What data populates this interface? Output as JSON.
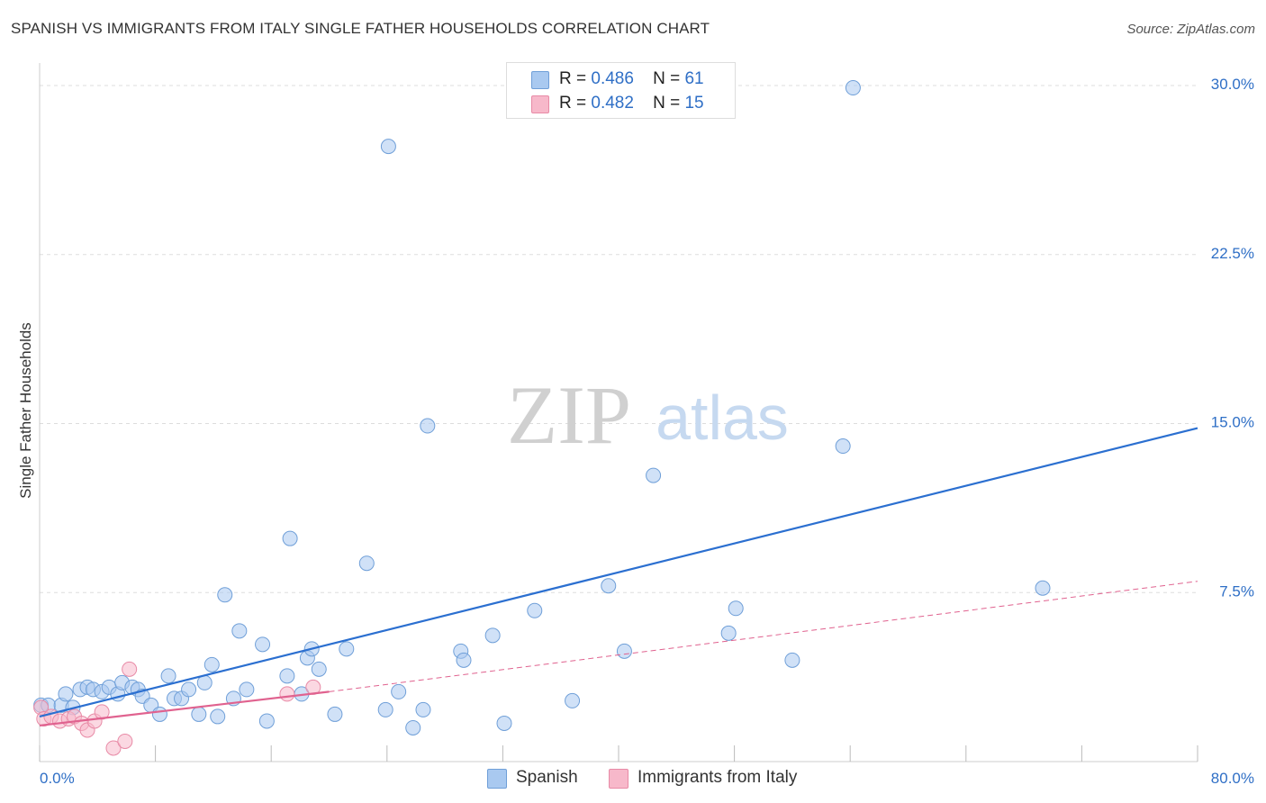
{
  "title": "SPANISH VS IMMIGRANTS FROM ITALY SINGLE FATHER HOUSEHOLDS CORRELATION CHART",
  "source": "Source: ZipAtlas.com",
  "watermark": {
    "zip": "ZIP",
    "atlas": "atlas"
  },
  "legend_top": [
    {
      "r_label": "R =",
      "r_value": "0.486",
      "n_label": "N =",
      "n_value": "61"
    },
    {
      "r_label": "R =",
      "r_value": "0.482",
      "n_label": "N =",
      "n_value": "15"
    }
  ],
  "legend_bottom": [
    "Spanish",
    "Immigrants from Italy"
  ],
  "colors": {
    "spanish_fill": "#a9c9f0",
    "spanish_stroke": "#6f9fd8",
    "spanish_line": "#2b6fd0",
    "italy_fill": "#f7b8ca",
    "italy_stroke": "#e88aa6",
    "italy_line": "#e0628f",
    "axis_label": "#2f6fc6",
    "grid": "#dddddd"
  },
  "chart_data": {
    "type": "scatter",
    "title": "SPANISH VS IMMIGRANTS FROM ITALY SINGLE FATHER HOUSEHOLDS CORRELATION CHART",
    "xlabel": "",
    "ylabel": "Single Father Households",
    "xlim": [
      0,
      80
    ],
    "ylim": [
      0,
      31
    ],
    "x_tick_labels": [
      "0.0%",
      "80.0%"
    ],
    "y_ticks": [
      7.5,
      15.0,
      22.5,
      30.0
    ],
    "y_tick_labels": [
      "7.5%",
      "15.0%",
      "22.5%",
      "30.0%"
    ],
    "grid": true,
    "series": [
      {
        "name": "Spanish",
        "r": 0.486,
        "n": 61,
        "points": [
          [
            0.1,
            2.5
          ],
          [
            0.6,
            2.5
          ],
          [
            1.5,
            2.5
          ],
          [
            1.8,
            3.0
          ],
          [
            2.3,
            2.4
          ],
          [
            2.8,
            3.2
          ],
          [
            3.3,
            3.3
          ],
          [
            3.7,
            3.2
          ],
          [
            4.3,
            3.1
          ],
          [
            4.8,
            3.3
          ],
          [
            5.4,
            3.0
          ],
          [
            5.7,
            3.5
          ],
          [
            6.4,
            3.3
          ],
          [
            6.8,
            3.2
          ],
          [
            7.1,
            2.9
          ],
          [
            7.7,
            2.5
          ],
          [
            8.3,
            2.1
          ],
          [
            8.9,
            3.8
          ],
          [
            9.3,
            2.8
          ],
          [
            9.8,
            2.8
          ],
          [
            10.3,
            3.2
          ],
          [
            11.0,
            2.1
          ],
          [
            11.4,
            3.5
          ],
          [
            11.9,
            4.3
          ],
          [
            12.3,
            2.0
          ],
          [
            12.8,
            7.4
          ],
          [
            13.4,
            2.8
          ],
          [
            13.8,
            5.8
          ],
          [
            14.3,
            3.2
          ],
          [
            15.4,
            5.2
          ],
          [
            15.7,
            1.8
          ],
          [
            17.1,
            3.8
          ],
          [
            17.3,
            9.9
          ],
          [
            18.1,
            3.0
          ],
          [
            18.5,
            4.6
          ],
          [
            18.8,
            5.0
          ],
          [
            19.3,
            4.1
          ],
          [
            20.4,
            2.1
          ],
          [
            21.2,
            5.0
          ],
          [
            22.6,
            8.8
          ],
          [
            23.9,
            2.3
          ],
          [
            24.1,
            27.3
          ],
          [
            24.8,
            3.1
          ],
          [
            25.8,
            1.5
          ],
          [
            26.5,
            2.3
          ],
          [
            26.8,
            14.9
          ],
          [
            29.1,
            4.9
          ],
          [
            29.3,
            4.5
          ],
          [
            31.3,
            5.6
          ],
          [
            32.1,
            1.7
          ],
          [
            34.2,
            6.7
          ],
          [
            36.8,
            2.7
          ],
          [
            39.3,
            7.8
          ],
          [
            40.4,
            4.9
          ],
          [
            42.4,
            12.7
          ],
          [
            47.6,
            5.7
          ],
          [
            48.1,
            6.8
          ],
          [
            52.0,
            4.5
          ],
          [
            55.5,
            14.0
          ],
          [
            56.2,
            29.9
          ],
          [
            69.3,
            7.7
          ]
        ],
        "trend": {
          "x": [
            0,
            80
          ],
          "y": [
            2.0,
            14.8
          ]
        }
      },
      {
        "name": "Immigrants from Italy",
        "r": 0.482,
        "n": 15,
        "points": [
          [
            0.1,
            2.4
          ],
          [
            0.3,
            1.9
          ],
          [
            0.8,
            2.0
          ],
          [
            1.4,
            1.8
          ],
          [
            2.0,
            1.9
          ],
          [
            2.4,
            2.0
          ],
          [
            2.9,
            1.7
          ],
          [
            3.3,
            1.4
          ],
          [
            3.8,
            1.8
          ],
          [
            4.3,
            2.2
          ],
          [
            5.1,
            0.6
          ],
          [
            5.9,
            0.9
          ],
          [
            6.2,
            4.1
          ],
          [
            17.1,
            3.0
          ],
          [
            18.9,
            3.3
          ]
        ],
        "trend": {
          "x": [
            0,
            20
          ],
          "y": [
            1.6,
            3.1
          ]
        },
        "trend_extended": {
          "x": [
            20,
            80
          ],
          "y": [
            3.1,
            8.0
          ]
        }
      }
    ]
  }
}
